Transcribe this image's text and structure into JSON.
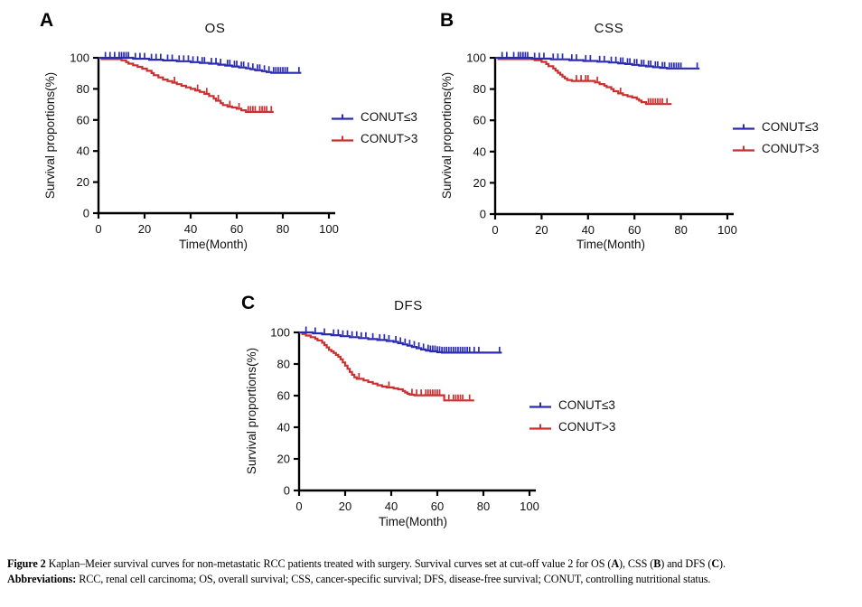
{
  "colors": {
    "conut_low": "#2a2ab2",
    "conut_high": "#cb2f2f",
    "axis": "#000000",
    "text": "#111111"
  },
  "caption": {
    "line1": [
      {
        "t": "Figure 2 ",
        "b": true
      },
      {
        "t": "Kaplan–Meier survival curves for non-metastatic RCC patients treated with surgery. Survival curves set at cut-off value 2 for OS (",
        "b": false
      },
      {
        "t": "A",
        "b": true
      },
      {
        "t": "), CSS (",
        "b": false
      },
      {
        "t": "B",
        "b": true
      },
      {
        "t": ") and DFS (",
        "b": false
      },
      {
        "t": "C",
        "b": true
      },
      {
        "t": ").",
        "b": false
      }
    ],
    "line2": [
      {
        "t": "Abbreviations: ",
        "b": true
      },
      {
        "t": "RCC, renal cell carcinoma; OS, overall survival; CSS, cancer-specific survival; DFS, disease-free survival; CONUT, controlling nutritional status.",
        "b": false
      }
    ]
  },
  "chart_data": [
    {
      "type": "line",
      "kind": "kaplan-meier-step",
      "panel_label": "A",
      "title": "OS",
      "xlabel": "Time(Month)",
      "ylabel": "Survival proportions(%)",
      "xlim": [
        0,
        100
      ],
      "ylim": [
        0,
        100
      ],
      "xticks": [
        0,
        20,
        40,
        60,
        80,
        100
      ],
      "yticks": [
        0,
        20,
        40,
        60,
        80,
        100
      ],
      "grid": false,
      "legend_position": "right-middle",
      "series": [
        {
          "name": "CONUT≤3",
          "color": "#2a2ab2",
          "steps": [
            [
              0,
              100
            ],
            [
              15,
              99.4
            ],
            [
              22,
              98.8
            ],
            [
              28,
              98.3
            ],
            [
              34,
              97.8
            ],
            [
              40,
              97.2
            ],
            [
              44,
              96.7
            ],
            [
              48,
              96.2
            ],
            [
              52,
              95.6
            ],
            [
              55,
              95
            ],
            [
              58,
              94.4
            ],
            [
              61,
              93.8
            ],
            [
              64,
              93.2
            ],
            [
              66,
              92.6
            ],
            [
              68,
              92
            ],
            [
              71,
              91.4
            ],
            [
              73,
              90.8
            ],
            [
              75,
              90.3
            ],
            [
              88,
              90.3
            ]
          ],
          "censor_times": [
            3,
            5,
            7,
            9,
            10,
            11,
            12,
            13,
            16,
            18,
            20,
            23,
            25,
            27,
            30,
            32,
            35,
            37,
            39,
            41,
            43,
            45,
            46,
            49,
            51,
            53,
            56,
            57,
            59,
            60,
            62,
            63,
            65,
            67,
            69,
            70,
            72,
            74,
            76,
            77,
            78,
            79,
            80,
            81,
            82,
            87
          ]
        },
        {
          "name": "CONUT>3",
          "color": "#cb2f2f",
          "steps": [
            [
              1,
              99.2
            ],
            [
              10,
              98.4
            ],
            [
              12,
              97.2
            ],
            [
              13,
              96.2
            ],
            [
              15,
              95.2
            ],
            [
              17,
              94.2
            ],
            [
              19,
              93
            ],
            [
              21,
              91.6
            ],
            [
              23,
              90.2
            ],
            [
              24,
              88.8
            ],
            [
              26,
              87.4
            ],
            [
              28,
              86
            ],
            [
              30,
              85
            ],
            [
              32,
              84
            ],
            [
              34,
              83
            ],
            [
              36,
              82
            ],
            [
              38,
              81
            ],
            [
              40,
              80
            ],
            [
              42,
              79
            ],
            [
              44,
              78
            ],
            [
              46,
              76.8
            ],
            [
              48,
              75.4
            ],
            [
              50,
              73.8
            ],
            [
              51,
              72.4
            ],
            [
              53,
              70.8
            ],
            [
              54,
              69.6
            ],
            [
              56,
              68.6
            ],
            [
              58,
              68
            ],
            [
              60,
              67.2
            ],
            [
              62,
              66.2
            ],
            [
              64,
              65.2
            ],
            [
              76,
              65.2
            ]
          ],
          "censor_times": [
            33,
            43,
            47,
            52,
            57,
            61,
            65,
            66,
            67,
            68,
            70,
            71,
            72,
            73,
            75
          ]
        }
      ]
    },
    {
      "type": "line",
      "kind": "kaplan-meier-step",
      "panel_label": "B",
      "title": "CSS",
      "xlabel": "Time(Month)",
      "ylabel": "Survival proportions(%)",
      "xlim": [
        0,
        100
      ],
      "ylim": [
        0,
        100
      ],
      "xticks": [
        0,
        20,
        40,
        60,
        80,
        100
      ],
      "yticks": [
        0,
        20,
        40,
        60,
        80,
        100
      ],
      "grid": false,
      "legend_position": "right-middle",
      "series": [
        {
          "name": "CONUT≤3",
          "color": "#2a2ab2",
          "steps": [
            [
              0,
              100
            ],
            [
              16,
              99.5
            ],
            [
              24,
              99
            ],
            [
              32,
              98.5
            ],
            [
              38,
              98
            ],
            [
              44,
              97.5
            ],
            [
              49,
              97
            ],
            [
              53,
              96.5
            ],
            [
              56,
              96
            ],
            [
              59,
              95.5
            ],
            [
              62,
              95
            ],
            [
              65,
              94.5
            ],
            [
              68,
              94
            ],
            [
              71,
              93.6
            ],
            [
              74,
              93.2
            ],
            [
              88,
              93.2
            ]
          ],
          "censor_times": [
            3,
            5,
            8,
            10,
            11,
            12,
            13,
            14,
            17,
            19,
            21,
            25,
            27,
            29,
            33,
            35,
            39,
            41,
            45,
            47,
            50,
            52,
            54,
            55,
            57,
            58,
            60,
            61,
            63,
            64,
            66,
            67,
            69,
            70,
            72,
            73,
            75,
            76,
            77,
            78,
            79,
            80,
            87
          ]
        },
        {
          "name": "CONUT>3",
          "color": "#cb2f2f",
          "steps": [
            [
              1,
              99.2
            ],
            [
              17,
              98.5
            ],
            [
              20,
              97.4
            ],
            [
              22,
              96
            ],
            [
              23,
              94.6
            ],
            [
              25,
              93.2
            ],
            [
              26,
              91.8
            ],
            [
              27,
              90.4
            ],
            [
              28,
              89.2
            ],
            [
              29,
              88
            ],
            [
              30,
              86.8
            ],
            [
              31,
              85.8
            ],
            [
              33,
              85.2
            ],
            [
              41,
              85.2
            ],
            [
              43,
              84.2
            ],
            [
              45,
              83.2
            ],
            [
              47,
              82.2
            ],
            [
              48,
              81.2
            ],
            [
              50,
              80
            ],
            [
              51,
              78.6
            ],
            [
              53,
              77.2
            ],
            [
              55,
              76.2
            ],
            [
              57,
              75.4
            ],
            [
              59,
              74.6
            ],
            [
              61,
              73.6
            ],
            [
              62,
              72.6
            ],
            [
              63,
              71.6
            ],
            [
              65,
              70.4
            ],
            [
              76,
              70.4
            ]
          ],
          "censor_times": [
            35,
            37,
            39,
            40,
            44,
            54,
            66,
            67,
            68,
            69,
            70,
            71,
            72,
            74
          ]
        }
      ]
    },
    {
      "type": "line",
      "kind": "kaplan-meier-step",
      "panel_label": "C",
      "title": "DFS",
      "xlabel": "Time(Month)",
      "ylabel": "Survival proportions(%)",
      "xlim": [
        0,
        100
      ],
      "ylim": [
        0,
        100
      ],
      "xticks": [
        0,
        20,
        40,
        60,
        80,
        100
      ],
      "yticks": [
        0,
        20,
        40,
        60,
        80,
        100
      ],
      "grid": false,
      "legend_position": "right-middle",
      "series": [
        {
          "name": "CONUT≤3",
          "color": "#2a2ab2",
          "steps": [
            [
              0,
              100
            ],
            [
              6,
              99.4
            ],
            [
              10,
              98.8
            ],
            [
              14,
              98.2
            ],
            [
              18,
              97.6
            ],
            [
              22,
              97
            ],
            [
              26,
              96.4
            ],
            [
              30,
              95.8
            ],
            [
              34,
              95.2
            ],
            [
              38,
              94.6
            ],
            [
              41,
              94
            ],
            [
              43,
              93.2
            ],
            [
              45,
              92.4
            ],
            [
              47,
              91.6
            ],
            [
              49,
              90.8
            ],
            [
              51,
              90
            ],
            [
              53,
              89.2
            ],
            [
              55,
              88.5
            ],
            [
              57,
              88
            ],
            [
              60,
              87.5
            ],
            [
              62,
              87.2
            ],
            [
              88,
              87.2
            ]
          ],
          "censor_times": [
            3,
            7,
            11,
            15,
            17,
            19,
            21,
            23,
            25,
            27,
            29,
            32,
            35,
            37,
            39,
            42,
            44,
            46,
            48,
            50,
            52,
            54,
            56,
            57,
            58,
            59,
            60,
            61,
            62,
            63,
            64,
            65,
            66,
            67,
            68,
            69,
            70,
            71,
            72,
            73,
            74,
            76,
            78,
            87
          ]
        },
        {
          "name": "CONUT>3",
          "color": "#cb2f2f",
          "steps": [
            [
              1,
              99
            ],
            [
              3,
              98
            ],
            [
              5,
              97
            ],
            [
              7,
              96
            ],
            [
              8,
              95
            ],
            [
              10,
              93.5
            ],
            [
              11,
              92
            ],
            [
              12,
              90.5
            ],
            [
              13,
              89
            ],
            [
              14,
              88
            ],
            [
              15,
              87
            ],
            [
              16,
              85.8
            ],
            [
              17,
              84.6
            ],
            [
              18,
              83
            ],
            [
              19,
              81
            ],
            [
              20,
              79
            ],
            [
              21,
              77
            ],
            [
              22,
              75
            ],
            [
              23,
              73.2
            ],
            [
              24,
              71.6
            ],
            [
              25,
              70.6
            ],
            [
              28,
              69.6
            ],
            [
              30,
              68.6
            ],
            [
              32,
              67.6
            ],
            [
              34,
              66.6
            ],
            [
              36,
              65.8
            ],
            [
              38,
              65.2
            ],
            [
              41,
              64.6
            ],
            [
              43,
              64
            ],
            [
              45,
              63
            ],
            [
              46,
              62
            ],
            [
              47,
              61.2
            ],
            [
              48,
              60.6
            ],
            [
              50,
              60.2
            ],
            [
              62,
              60.2
            ],
            [
              63,
              57
            ],
            [
              76,
              57
            ]
          ],
          "censor_times": [
            26,
            39,
            49,
            51,
            53,
            55,
            56,
            57,
            58,
            59,
            60,
            61,
            65,
            67,
            68,
            69,
            70,
            71,
            74
          ]
        }
      ]
    }
  ]
}
